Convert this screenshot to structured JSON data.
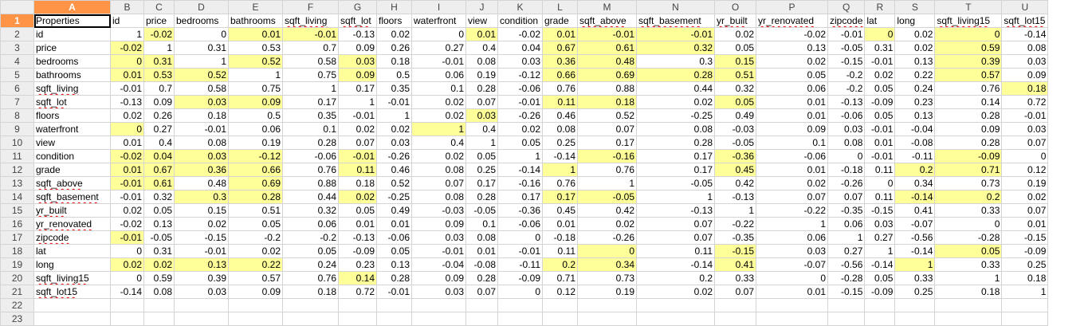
{
  "columns": [
    "A",
    "B",
    "C",
    "D",
    "E",
    "F",
    "G",
    "H",
    "I",
    "J",
    "K",
    "L",
    "M",
    "N",
    "O",
    "P",
    "Q",
    "R",
    "S",
    "T",
    "U"
  ],
  "selected_column": "A",
  "selected_row": 1,
  "header_row": [
    "Properties",
    "id",
    "price",
    "bedrooms",
    "bathrooms",
    "sqft_living",
    "sqft_lot",
    "floors",
    "waterfront",
    "view",
    "condition",
    "grade",
    "sqft_above",
    "sqft_basement",
    "yr_built",
    "yr_renovated",
    "zipcode",
    "lat",
    "long",
    "sqft_living15",
    "sqft_lot15"
  ],
  "row_labels": [
    "id",
    "price",
    "bedrooms",
    "bathrooms",
    "sqft_living",
    "sqft_lot",
    "floors",
    "waterfront",
    "view",
    "condition",
    "grade",
    "sqft_above",
    "sqft_basement",
    "yr_built",
    "yr_renovated",
    "zipcode",
    "lat",
    "long",
    "sqft_living15",
    "sqft_lot15"
  ],
  "matrix": [
    [
      "1",
      "-0.02",
      "0",
      "0.01",
      "-0.01",
      "-0.13",
      "0.02",
      "0",
      "0.01",
      "-0.02",
      "0.01",
      "-0.01",
      "-0.01",
      "0.02",
      "-0.02",
      "-0.01",
      "0",
      "0.02",
      "0",
      "-0.14"
    ],
    [
      "-0.02",
      "1",
      "0.31",
      "0.53",
      "0.7",
      "0.09",
      "0.26",
      "0.27",
      "0.4",
      "0.04",
      "0.67",
      "0.61",
      "0.32",
      "0.05",
      "0.13",
      "-0.05",
      "0.31",
      "0.02",
      "0.59",
      "0.08"
    ],
    [
      "0",
      "0.31",
      "1",
      "0.52",
      "0.58",
      "0.03",
      "0.18",
      "-0.01",
      "0.08",
      "0.03",
      "0.36",
      "0.48",
      "0.3",
      "0.15",
      "0.02",
      "-0.15",
      "-0.01",
      "0.13",
      "0.39",
      "0.03"
    ],
    [
      "0.01",
      "0.53",
      "0.52",
      "1",
      "0.75",
      "0.09",
      "0.5",
      "0.06",
      "0.19",
      "-0.12",
      "0.66",
      "0.69",
      "0.28",
      "0.51",
      "0.05",
      "-0.2",
      "0.02",
      "0.22",
      "0.57",
      "0.09"
    ],
    [
      "-0.01",
      "0.7",
      "0.58",
      "0.75",
      "1",
      "0.17",
      "0.35",
      "0.1",
      "0.28",
      "-0.06",
      "0.76",
      "0.88",
      "0.44",
      "0.32",
      "0.06",
      "-0.2",
      "0.05",
      "0.24",
      "0.76",
      "0.18"
    ],
    [
      "-0.13",
      "0.09",
      "0.03",
      "0.09",
      "0.17",
      "1",
      "-0.01",
      "0.02",
      "0.07",
      "-0.01",
      "0.11",
      "0.18",
      "0.02",
      "0.05",
      "0.01",
      "-0.13",
      "-0.09",
      "0.23",
      "0.14",
      "0.72"
    ],
    [
      "0.02",
      "0.26",
      "0.18",
      "0.5",
      "0.35",
      "-0.01",
      "1",
      "0.02",
      "0.03",
      "-0.26",
      "0.46",
      "0.52",
      "-0.25",
      "0.49",
      "0.01",
      "-0.06",
      "0.05",
      "0.13",
      "0.28",
      "-0.01"
    ],
    [
      "0",
      "0.27",
      "-0.01",
      "0.06",
      "0.1",
      "0.02",
      "0.02",
      "1",
      "0.4",
      "0.02",
      "0.08",
      "0.07",
      "0.08",
      "-0.03",
      "0.09",
      "0.03",
      "-0.01",
      "-0.04",
      "0.09",
      "0.03"
    ],
    [
      "0.01",
      "0.4",
      "0.08",
      "0.19",
      "0.28",
      "0.07",
      "0.03",
      "0.4",
      "1",
      "0.05",
      "0.25",
      "0.17",
      "0.28",
      "-0.05",
      "0.1",
      "0.08",
      "0.01",
      "-0.08",
      "0.28",
      "0.07"
    ],
    [
      "-0.02",
      "0.04",
      "0.03",
      "-0.12",
      "-0.06",
      "-0.01",
      "-0.26",
      "0.02",
      "0.05",
      "1",
      "-0.14",
      "-0.16",
      "0.17",
      "-0.36",
      "-0.06",
      "0",
      "-0.01",
      "-0.11",
      "-0.09",
      "0"
    ],
    [
      "0.01",
      "0.67",
      "0.36",
      "0.66",
      "0.76",
      "0.11",
      "0.46",
      "0.08",
      "0.25",
      "-0.14",
      "1",
      "0.76",
      "0.17",
      "0.45",
      "0.01",
      "-0.18",
      "0.11",
      "0.2",
      "0.71",
      "0.12"
    ],
    [
      "-0.01",
      "0.61",
      "0.48",
      "0.69",
      "0.88",
      "0.18",
      "0.52",
      "0.07",
      "0.17",
      "-0.16",
      "0.76",
      "1",
      "-0.05",
      "0.42",
      "0.02",
      "-0.26",
      "0",
      "0.34",
      "0.73",
      "0.19"
    ],
    [
      "-0.01",
      "0.32",
      "0.3",
      "0.28",
      "0.44",
      "0.02",
      "-0.25",
      "0.08",
      "0.28",
      "0.17",
      "0.17",
      "-0.05",
      "1",
      "-0.13",
      "0.07",
      "0.07",
      "0.11",
      "-0.14",
      "0.2",
      "0.02"
    ],
    [
      "0.02",
      "0.05",
      "0.15",
      "0.51",
      "0.32",
      "0.05",
      "0.49",
      "-0.03",
      "-0.05",
      "-0.36",
      "0.45",
      "0.42",
      "-0.13",
      "1",
      "-0.22",
      "-0.35",
      "-0.15",
      "0.41",
      "0.33",
      "0.07"
    ],
    [
      "-0.02",
      "0.13",
      "0.02",
      "0.05",
      "0.06",
      "0.01",
      "0.01",
      "0.09",
      "0.1",
      "-0.06",
      "0.01",
      "0.02",
      "0.07",
      "-0.22",
      "1",
      "0.06",
      "0.03",
      "-0.07",
      "0",
      "0.01"
    ],
    [
      "-0.01",
      "-0.05",
      "-0.15",
      "-0.2",
      "-0.2",
      "-0.13",
      "-0.06",
      "0.03",
      "0.08",
      "0",
      "-0.18",
      "-0.26",
      "0.07",
      "-0.35",
      "0.06",
      "1",
      "0.27",
      "-0.56",
      "-0.28",
      "-0.15"
    ],
    [
      "0",
      "0.31",
      "-0.01",
      "0.02",
      "0.05",
      "-0.09",
      "0.05",
      "-0.01",
      "0.01",
      "-0.01",
      "0.11",
      "0",
      "0.11",
      "-0.15",
      "0.03",
      "0.27",
      "1",
      "-0.14",
      "0.05",
      "-0.09"
    ],
    [
      "0.02",
      "0.02",
      "0.13",
      "0.22",
      "0.24",
      "0.23",
      "0.13",
      "-0.04",
      "-0.08",
      "-0.11",
      "0.2",
      "0.34",
      "-0.14",
      "0.41",
      "-0.07",
      "-0.56",
      "-0.14",
      "1",
      "0.33",
      "0.25"
    ],
    [
      "0",
      "0.59",
      "0.39",
      "0.57",
      "0.76",
      "0.14",
      "0.28",
      "0.09",
      "0.28",
      "-0.09",
      "0.71",
      "0.73",
      "0.2",
      "0.33",
      "0",
      "-0.28",
      "0.05",
      "0.33",
      "1",
      "0.18"
    ],
    [
      "-0.14",
      "0.08",
      "0.03",
      "0.09",
      "0.18",
      "0.72",
      "-0.01",
      "0.03",
      "0.07",
      "0",
      "0.12",
      "0.19",
      "0.02",
      "0.07",
      "0.01",
      "-0.15",
      "-0.09",
      "0.25",
      "0.18",
      "1"
    ]
  ],
  "highlighted_cells": [
    [
      2,
      2
    ],
    [
      2,
      4
    ],
    [
      2,
      5
    ],
    [
      2,
      9
    ],
    [
      2,
      11
    ],
    [
      2,
      12
    ],
    [
      2,
      13
    ],
    [
      2,
      17
    ],
    [
      2,
      19
    ],
    [
      3,
      1
    ],
    [
      3,
      11
    ],
    [
      3,
      12
    ],
    [
      3,
      13
    ],
    [
      3,
      19
    ],
    [
      4,
      1
    ],
    [
      4,
      2
    ],
    [
      4,
      4
    ],
    [
      4,
      6
    ],
    [
      4,
      11
    ],
    [
      4,
      12
    ],
    [
      4,
      14
    ],
    [
      4,
      19
    ],
    [
      5,
      1
    ],
    [
      5,
      2
    ],
    [
      5,
      3
    ],
    [
      5,
      6
    ],
    [
      5,
      11
    ],
    [
      5,
      12
    ],
    [
      5,
      13
    ],
    [
      5,
      14
    ],
    [
      5,
      19
    ],
    [
      6,
      20
    ],
    [
      7,
      3
    ],
    [
      7,
      4
    ],
    [
      7,
      11
    ],
    [
      7,
      12
    ],
    [
      7,
      14
    ],
    [
      8,
      9
    ],
    [
      9,
      1
    ],
    [
      9,
      8
    ],
    [
      11,
      1
    ],
    [
      11,
      2
    ],
    [
      11,
      3
    ],
    [
      11,
      4
    ],
    [
      11,
      6
    ],
    [
      11,
      12
    ],
    [
      11,
      14
    ],
    [
      11,
      19
    ],
    [
      12,
      1
    ],
    [
      12,
      2
    ],
    [
      12,
      3
    ],
    [
      12,
      4
    ],
    [
      12,
      6
    ],
    [
      12,
      11
    ],
    [
      12,
      14
    ],
    [
      12,
      18
    ],
    [
      12,
      19
    ],
    [
      13,
      1
    ],
    [
      13,
      2
    ],
    [
      13,
      4
    ],
    [
      14,
      3
    ],
    [
      14,
      4
    ],
    [
      14,
      6
    ],
    [
      14,
      11
    ],
    [
      14,
      12
    ],
    [
      14,
      18
    ],
    [
      14,
      19
    ],
    [
      17,
      1
    ],
    [
      18,
      12
    ],
    [
      18,
      14
    ],
    [
      18,
      19
    ],
    [
      19,
      1
    ],
    [
      19,
      2
    ],
    [
      19,
      3
    ],
    [
      19,
      4
    ],
    [
      19,
      11
    ],
    [
      19,
      12
    ],
    [
      19,
      14
    ],
    [
      19,
      18
    ],
    [
      20,
      6
    ]
  ],
  "spell_flagged": [
    "sqft_living",
    "sqft_lot",
    "sqft_above",
    "sqft_basement",
    "yr_built",
    "yr_renovated",
    "zipcode",
    "sqft_living15",
    "sqft_lot15"
  ]
}
